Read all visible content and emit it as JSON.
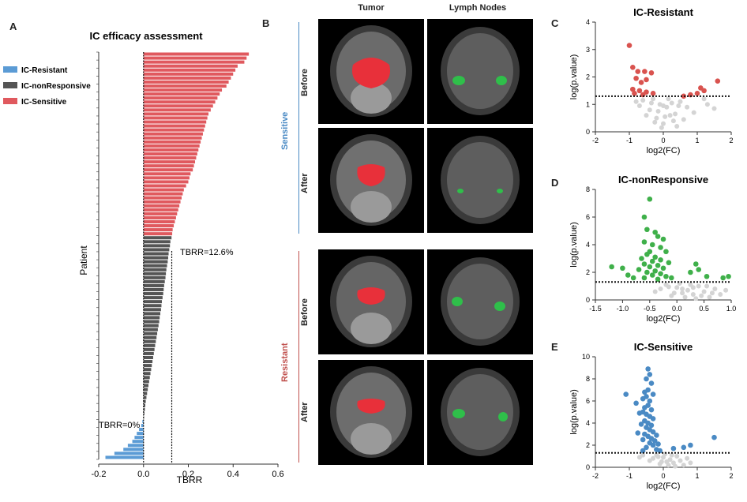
{
  "figure": {
    "panels": {
      "a": "A",
      "b": "B",
      "c": "C",
      "d": "D",
      "e": "E"
    }
  },
  "colors": {
    "resistant": "#5b9bd5",
    "nonresponsive": "#555555",
    "sensitive": "#e0595e",
    "volcano_resistant_sig": "#d9534f",
    "volcano_nonresp_sig": "#3fb04a",
    "volcano_sensitive_sig": "#4a8ac4",
    "volcano_nonsig": "#d4d4d4",
    "tumor_mask": "#e8303a",
    "lymph_mask": "#2fbf4a"
  },
  "chart_data": [
    {
      "type": "bar",
      "orientation": "horizontal",
      "title": "IC efficacy assessment",
      "xlabel": "TBRR",
      "ylabel": "Patient",
      "xlim": [
        -0.2,
        0.6
      ],
      "xticks": [
        "-0.2",
        "0.0",
        "0.2",
        "0.4",
        "0.6"
      ],
      "legend": [
        "IC-Resistant",
        "IC-nonResponsive",
        "IC-Sensitive"
      ],
      "annotations": [
        "TBRR=12.6%",
        "TBRR=0%"
      ],
      "thresholds": [
        0.126,
        0
      ],
      "series": [
        {
          "name": "IC-Sensitive",
          "values": [
            0.47,
            0.46,
            0.45,
            0.42,
            0.41,
            0.4,
            0.39,
            0.38,
            0.37,
            0.35,
            0.34,
            0.33,
            0.32,
            0.31,
            0.3,
            0.29,
            0.285,
            0.28,
            0.275,
            0.27,
            0.265,
            0.26,
            0.255,
            0.25,
            0.245,
            0.24,
            0.235,
            0.23,
            0.225,
            0.22,
            0.21,
            0.205,
            0.2,
            0.19,
            0.18,
            0.175,
            0.17,
            0.165,
            0.16,
            0.155,
            0.15,
            0.145,
            0.14,
            0.135,
            0.13,
            0.128
          ]
        },
        {
          "name": "IC-nonResponsive",
          "values": [
            0.125,
            0.12,
            0.118,
            0.115,
            0.112,
            0.11,
            0.108,
            0.105,
            0.102,
            0.1,
            0.098,
            0.095,
            0.092,
            0.09,
            0.088,
            0.085,
            0.082,
            0.08,
            0.078,
            0.075,
            0.072,
            0.07,
            0.067,
            0.064,
            0.061,
            0.058,
            0.055,
            0.052,
            0.049,
            0.046,
            0.043,
            0.04,
            0.037,
            0.034,
            0.031,
            0.028,
            0.025,
            0.022,
            0.019,
            0.016,
            0.013,
            0.01,
            0.008,
            0.006,
            0.004,
            0.002
          ]
        },
        {
          "name": "IC-Resistant",
          "values": [
            -0.005,
            -0.01,
            -0.02,
            -0.03,
            -0.04,
            -0.05,
            -0.07,
            -0.09,
            -0.13,
            -0.17
          ]
        }
      ]
    },
    {
      "type": "scatter",
      "title": "IC-Resistant",
      "xlabel": "log2(FC)",
      "ylabel": "log(p.value)",
      "xlim": [
        -2,
        2
      ],
      "ylim": [
        0,
        4
      ],
      "xticks": [
        "-2",
        "-1",
        "0",
        "1",
        "2"
      ],
      "yticks": [
        "0",
        "1",
        "2",
        "3",
        "4"
      ],
      "threshold": 1.3,
      "significant": [
        [
          -1.0,
          3.15
        ],
        [
          -0.9,
          2.35
        ],
        [
          -0.75,
          2.2
        ],
        [
          -0.55,
          2.2
        ],
        [
          -0.35,
          2.15
        ],
        [
          -0.8,
          1.95
        ],
        [
          -0.5,
          1.9
        ],
        [
          -0.65,
          1.8
        ],
        [
          -0.9,
          1.55
        ],
        [
          -0.7,
          1.5
        ],
        [
          -0.5,
          1.45
        ],
        [
          -0.85,
          1.4
        ],
        [
          -0.6,
          1.35
        ],
        [
          -0.3,
          1.4
        ],
        [
          1.6,
          1.85
        ],
        [
          1.1,
          1.6
        ],
        [
          1.0,
          1.4
        ],
        [
          0.8,
          1.35
        ],
        [
          1.2,
          1.5
        ],
        [
          0.6,
          1.3
        ]
      ],
      "nonsignificant": [
        [
          -0.3,
          1.2
        ],
        [
          -0.1,
          1.0
        ],
        [
          0.1,
          0.9
        ],
        [
          0.2,
          0.6
        ],
        [
          -0.2,
          0.5
        ],
        [
          0.0,
          0.3
        ],
        [
          0.3,
          0.4
        ],
        [
          -0.4,
          0.8
        ],
        [
          0.5,
          1.1
        ],
        [
          0.7,
          0.9
        ],
        [
          1.3,
          1.0
        ],
        [
          -0.6,
          1.15
        ],
        [
          0.4,
          0.2
        ],
        [
          -0.5,
          0.6
        ],
        [
          0.15,
          1.2
        ],
        [
          -0.05,
          0.15
        ],
        [
          0.25,
          1.05
        ],
        [
          -0.25,
          0.35
        ],
        [
          0.9,
          0.7
        ],
        [
          -0.8,
          1.1
        ],
        [
          1.5,
          0.85
        ],
        [
          0.05,
          0.55
        ],
        [
          -0.15,
          0.75
        ],
        [
          0.35,
          0.65
        ],
        [
          0.6,
          0.45
        ],
        [
          -0.35,
          1.05
        ],
        [
          0.45,
          0.95
        ],
        [
          1.2,
          1.2
        ],
        [
          -0.7,
          0.95
        ],
        [
          0.0,
          0.95
        ]
      ]
    },
    {
      "type": "scatter",
      "title": "IC-nonResponsive",
      "xlabel": "log2(FC)",
      "ylabel": "log(p.value)",
      "xlim": [
        -1.5,
        1.0
      ],
      "ylim": [
        0,
        8
      ],
      "xticks": [
        "-1.5",
        "-1.0",
        "-0.5",
        "0.0",
        "0.5",
        "1.0"
      ],
      "yticks": [
        "0",
        "2",
        "4",
        "6",
        "8"
      ],
      "threshold": 1.3,
      "significant": [
        [
          -0.5,
          7.3
        ],
        [
          -0.6,
          6.0
        ],
        [
          -0.55,
          5.1
        ],
        [
          -0.4,
          4.9
        ],
        [
          -0.35,
          4.6
        ],
        [
          -0.25,
          4.4
        ],
        [
          -0.6,
          4.2
        ],
        [
          -0.45,
          4.0
        ],
        [
          -0.3,
          3.8
        ],
        [
          -0.5,
          3.5
        ],
        [
          -0.2,
          3.5
        ],
        [
          -0.55,
          3.3
        ],
        [
          -0.4,
          3.1
        ],
        [
          -0.65,
          3.0
        ],
        [
          -0.3,
          2.9
        ],
        [
          -0.45,
          2.8
        ],
        [
          -0.15,
          2.7
        ],
        [
          -0.6,
          2.6
        ],
        [
          -0.35,
          2.5
        ],
        [
          -0.5,
          2.4
        ],
        [
          -0.25,
          2.3
        ],
        [
          -0.7,
          2.2
        ],
        [
          -0.4,
          2.1
        ],
        [
          -0.55,
          2.0
        ],
        [
          -0.3,
          1.9
        ],
        [
          -0.45,
          1.8
        ],
        [
          -0.2,
          1.7
        ],
        [
          -0.6,
          1.6
        ],
        [
          -0.35,
          1.5
        ],
        [
          -1.2,
          2.4
        ],
        [
          -1.0,
          2.3
        ],
        [
          -0.9,
          1.8
        ],
        [
          -0.8,
          1.6
        ],
        [
          0.35,
          2.6
        ],
        [
          0.55,
          1.7
        ],
        [
          0.85,
          1.6
        ],
        [
          0.95,
          1.7
        ],
        [
          0.4,
          2.2
        ],
        [
          0.25,
          2.0
        ],
        [
          -0.1,
          1.6
        ]
      ],
      "nonsignificant": [
        [
          -0.2,
          1.1
        ],
        [
          0.0,
          0.9
        ],
        [
          0.1,
          0.5
        ],
        [
          -0.1,
          0.3
        ],
        [
          0.2,
          0.7
        ],
        [
          0.3,
          0.4
        ],
        [
          -0.3,
          0.8
        ],
        [
          0.4,
          1.0
        ],
        [
          0.5,
          0.6
        ],
        [
          0.6,
          0.2
        ],
        [
          -0.4,
          0.6
        ],
        [
          0.05,
          1.2
        ],
        [
          0.7,
          0.8
        ],
        [
          0.15,
          0.2
        ],
        [
          -0.05,
          0.5
        ],
        [
          0.25,
          1.1
        ],
        [
          0.8,
          0.4
        ],
        [
          0.35,
          0.1
        ],
        [
          -0.15,
          0.95
        ],
        [
          0.45,
          0.3
        ],
        [
          0.55,
          1.0
        ],
        [
          0.65,
          0.5
        ],
        [
          0.9,
          0.7
        ],
        [
          0.1,
          0.8
        ],
        [
          0.3,
          0.9
        ]
      ]
    },
    {
      "type": "scatter",
      "title": "IC-Sensitive",
      "xlabel": "log2(FC)",
      "ylabel": "log(p.value)",
      "xlim": [
        -2,
        2
      ],
      "ylim": [
        0,
        10
      ],
      "xticks": [
        "-2",
        "-1",
        "0",
        "1",
        "2"
      ],
      "yticks": [
        "0",
        "2",
        "4",
        "6",
        "8",
        "10"
      ],
      "threshold": 1.3,
      "significant": [
        [
          -0.45,
          8.9
        ],
        [
          -0.4,
          8.4
        ],
        [
          -0.5,
          8.0
        ],
        [
          -0.35,
          7.6
        ],
        [
          -0.45,
          7.0
        ],
        [
          -0.55,
          6.8
        ],
        [
          -0.3,
          6.6
        ],
        [
          -0.5,
          6.4
        ],
        [
          -0.6,
          6.2
        ],
        [
          -0.4,
          6.0
        ],
        [
          -0.45,
          5.6
        ],
        [
          -0.55,
          5.4
        ],
        [
          -0.35,
          5.2
        ],
        [
          -0.6,
          5.0
        ],
        [
          -0.5,
          4.8
        ],
        [
          -0.4,
          4.6
        ],
        [
          -0.3,
          4.4
        ],
        [
          -0.55,
          4.2
        ],
        [
          -0.45,
          4.0
        ],
        [
          -0.35,
          3.8
        ],
        [
          -0.5,
          3.6
        ],
        [
          -0.4,
          3.4
        ],
        [
          -0.3,
          3.2
        ],
        [
          -0.55,
          3.0
        ],
        [
          -0.45,
          2.8
        ],
        [
          -0.35,
          2.6
        ],
        [
          -0.25,
          2.4
        ],
        [
          -0.4,
          2.2
        ],
        [
          -0.3,
          2.0
        ],
        [
          -0.5,
          1.8
        ],
        [
          -1.1,
          6.6
        ],
        [
          -0.8,
          5.8
        ],
        [
          -0.7,
          4.9
        ],
        [
          -0.65,
          3.9
        ],
        [
          -0.75,
          3.1
        ],
        [
          -0.2,
          2.9
        ],
        [
          -0.15,
          2.1
        ],
        [
          -0.6,
          2.5
        ],
        [
          -0.2,
          1.6
        ],
        [
          1.5,
          2.7
        ],
        [
          0.8,
          2.0
        ],
        [
          0.6,
          1.8
        ],
        [
          0.3,
          1.7
        ],
        [
          -0.1,
          1.5
        ],
        [
          -0.6,
          1.5
        ]
      ],
      "nonsignificant": [
        [
          -0.2,
          1.1
        ],
        [
          0.0,
          0.9
        ],
        [
          0.1,
          0.5
        ],
        [
          -0.1,
          0.3
        ],
        [
          0.2,
          0.7
        ],
        [
          0.3,
          0.4
        ],
        [
          -0.3,
          0.8
        ],
        [
          0.4,
          1.0
        ],
        [
          0.5,
          0.6
        ],
        [
          0.6,
          0.2
        ],
        [
          -0.4,
          0.6
        ],
        [
          0.05,
          1.2
        ],
        [
          0.7,
          0.8
        ],
        [
          0.15,
          0.2
        ],
        [
          -0.05,
          0.5
        ],
        [
          0.25,
          1.1
        ],
        [
          0.8,
          0.4
        ],
        [
          -0.6,
          1.1
        ],
        [
          -0.7,
          0.9
        ],
        [
          0.35,
          0.1
        ],
        [
          -0.15,
          0.95
        ]
      ]
    }
  ],
  "panel_b": {
    "col_headers": [
      "Tumor",
      "Lymph Nodes"
    ],
    "groups": [
      "Sensitive",
      "Resistant"
    ],
    "rows": [
      "Before",
      "After",
      "Before",
      "After"
    ]
  }
}
